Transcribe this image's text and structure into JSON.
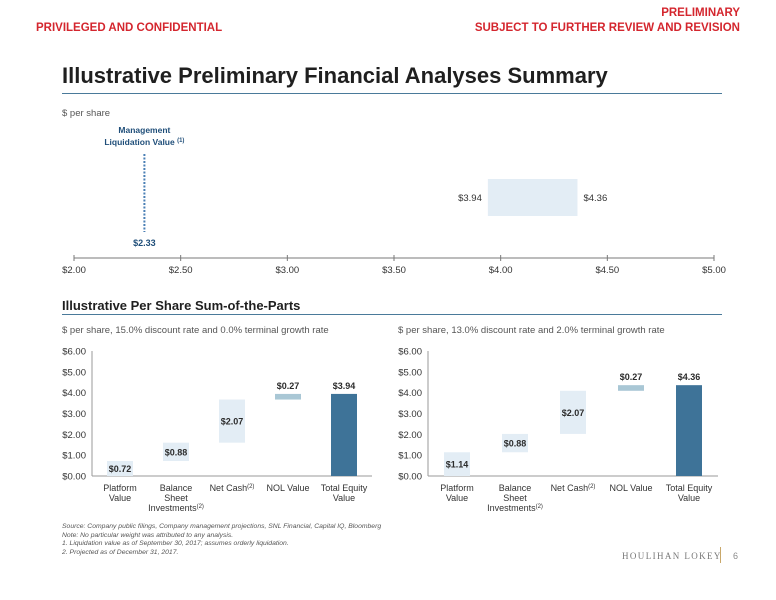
{
  "header": {
    "left": "PRIVILEGED AND CONFIDENTIAL",
    "right_line1": "PRELIMINARY",
    "right_line2": "SUBJECT TO FURTHER REVIEW AND REVISION"
  },
  "title": "Illustrative Preliminary Financial Analyses Summary",
  "unit_label": "$ per share",
  "section2_title": "Illustrative Per Share Sum-of-the-Parts",
  "footnotes": [
    "Source: Company public filings, Company management projections, SNL Financial, Capital IQ, Bloomberg",
    "Note: No particular weight was attributed to any analysis.",
    "1. Liquidation value as of September 30, 2017; assumes orderly liquidation.",
    "2. Projected as of December 31, 2017."
  ],
  "logo_text": "HOULIHAN LOKEY",
  "page_number": "6",
  "colors": {
    "header_red": "#d4262e",
    "navy": "#1f4e79",
    "range_fill": "#e3edf5",
    "total_bar": "#3e7398",
    "nol_bar": "#a9c7d5",
    "marker_blue": "#4a7fb5"
  },
  "chart_data": [
    {
      "type": "range_bar",
      "title": "Illustrative Preliminary Financial Analyses Summary",
      "axis_ticks": [
        "$2.00",
        "$2.50",
        "$3.00",
        "$3.50",
        "$4.00",
        "$4.50",
        "$5.00"
      ],
      "xlim": [
        2.0,
        5.0
      ],
      "range": {
        "low": 3.94,
        "high": 4.36,
        "low_label": "$3.94",
        "high_label": "$4.36"
      },
      "marker": {
        "name_line1": "Management",
        "name_line2": "Liquidation Value",
        "superscript": "(1)",
        "value": 2.33,
        "value_label": "$2.33"
      }
    },
    {
      "type": "waterfall",
      "subtitle": "$ per share, 15.0% discount rate and 0.0% terminal growth rate",
      "ylim": [
        0,
        6
      ],
      "yticks": [
        "$0.00",
        "$1.00",
        "$2.00",
        "$3.00",
        "$4.00",
        "$5.00",
        "$6.00"
      ],
      "categories": [
        {
          "line1": "Platform",
          "line2": "Value",
          "line3": "",
          "sup": ""
        },
        {
          "line1": "Balance",
          "line2": "Sheet",
          "line3": "Investments",
          "sup": "(2)"
        },
        {
          "line1": "Net Cash",
          "line2": "",
          "line3": "",
          "sup": "(2)"
        },
        {
          "line1": "NOL Value",
          "line2": "",
          "line3": "",
          "sup": ""
        },
        {
          "line1": "Total Equity",
          "line2": "Value",
          "line3": "",
          "sup": ""
        }
      ],
      "values": [
        0.72,
        0.88,
        2.07,
        0.27,
        3.94
      ],
      "labels": [
        "$0.72",
        "$0.88",
        "$2.07",
        "$0.27",
        "$3.94"
      ]
    },
    {
      "type": "waterfall",
      "subtitle": "$ per share, 13.0% discount rate and 2.0% terminal growth rate",
      "ylim": [
        0,
        6
      ],
      "yticks": [
        "$0.00",
        "$1.00",
        "$2.00",
        "$3.00",
        "$4.00",
        "$5.00",
        "$6.00"
      ],
      "categories": [
        {
          "line1": "Platform",
          "line2": "Value",
          "line3": "",
          "sup": ""
        },
        {
          "line1": "Balance",
          "line2": "Sheet",
          "line3": "Investments",
          "sup": "(2)"
        },
        {
          "line1": "Net Cash",
          "line2": "",
          "line3": "",
          "sup": "(2)"
        },
        {
          "line1": "NOL Value",
          "line2": "",
          "line3": "",
          "sup": ""
        },
        {
          "line1": "Total Equity",
          "line2": "Value",
          "line3": "",
          "sup": ""
        }
      ],
      "values": [
        1.14,
        0.88,
        2.07,
        0.27,
        4.36
      ],
      "labels": [
        "$1.14",
        "$0.88",
        "$2.07",
        "$0.27",
        "$4.36"
      ]
    }
  ]
}
